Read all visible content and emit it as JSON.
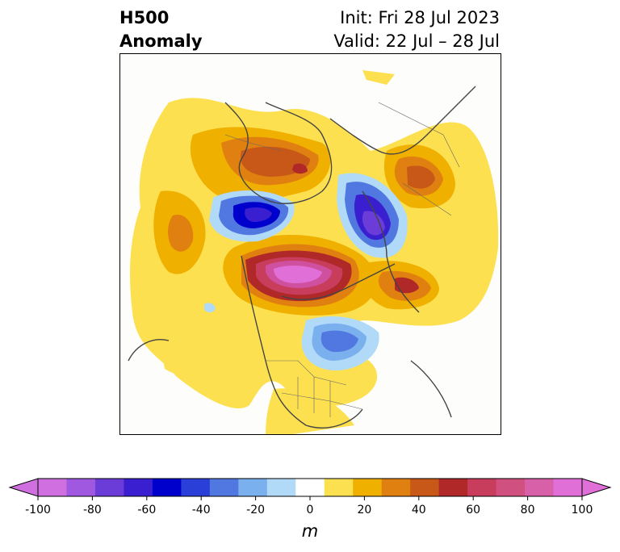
{
  "title": {
    "left_line1": "H500",
    "left_line2": "Anomaly",
    "right_line1": "Init: Fri 28 Jul 2023",
    "right_line2": "Valid: 22 Jul – 28 Jul"
  },
  "colorbar": {
    "unit": "m",
    "ticks": [
      "-100",
      "-80",
      "-60",
      "-40",
      "-20",
      "0",
      "20",
      "40",
      "60",
      "80",
      "100"
    ],
    "colors": [
      "#d070e0",
      "#a058e0",
      "#6c3cd8",
      "#3a1fd0",
      "#0000cc",
      "#2a3fd8",
      "#5078e0",
      "#7ab0ee",
      "#b0daf8",
      "#ffffff",
      "#fde050",
      "#f0b000",
      "#e08010",
      "#c85818",
      "#b02828",
      "#c83c5c",
      "#d05080",
      "#d860a8",
      "#e070d8"
    ],
    "extend_low_color": "#d070e0",
    "extend_high_color": "#e070d8"
  },
  "map_features": [
    {
      "name": "arctic-positive-anomaly-center",
      "category": "positive-anomaly"
    },
    {
      "name": "siberia-negative-anomaly",
      "category": "negative-anomaly"
    },
    {
      "name": "europe-negative-anomaly",
      "category": "negative-anomaly"
    },
    {
      "name": "eastern-canada-negative-anomaly",
      "category": "negative-anomaly"
    },
    {
      "name": "asia-ridge",
      "category": "positive-anomaly"
    },
    {
      "name": "central-europe-ridge",
      "category": "positive-anomaly"
    }
  ]
}
